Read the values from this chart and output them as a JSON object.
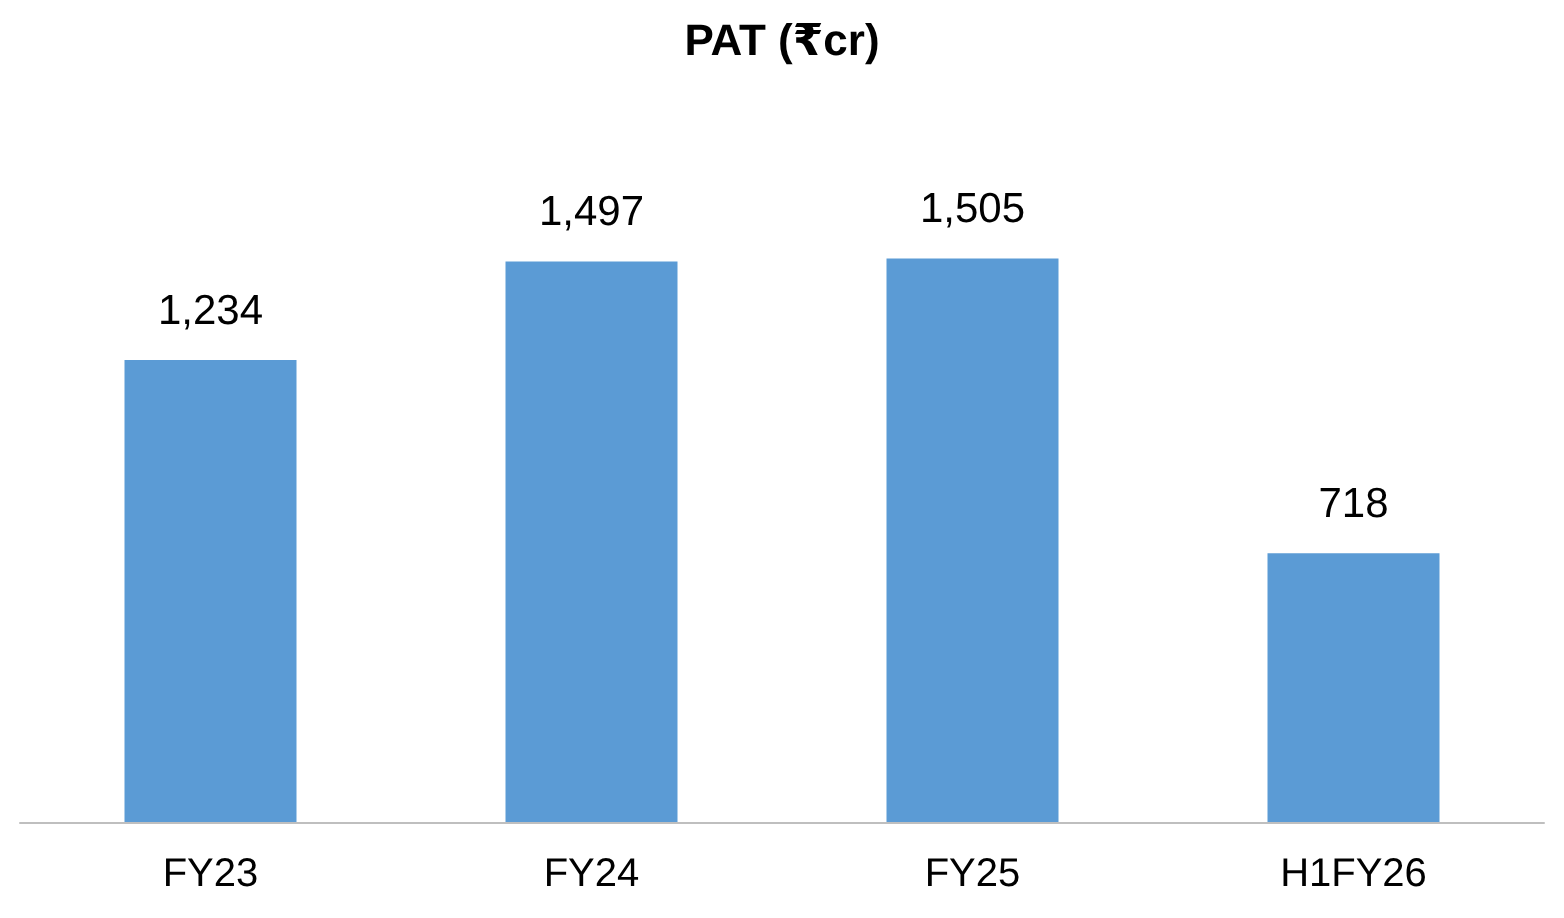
{
  "chart_data": {
    "type": "bar",
    "title": "PAT (₹cr)",
    "categories": [
      "FY23",
      "FY24",
      "FY25",
      "H1FY26"
    ],
    "values": [
      1234,
      1497,
      1505,
      718
    ],
    "value_labels": [
      "1,234",
      "1,497",
      "1,505",
      "718"
    ],
    "color": "#5b9bd5"
  }
}
